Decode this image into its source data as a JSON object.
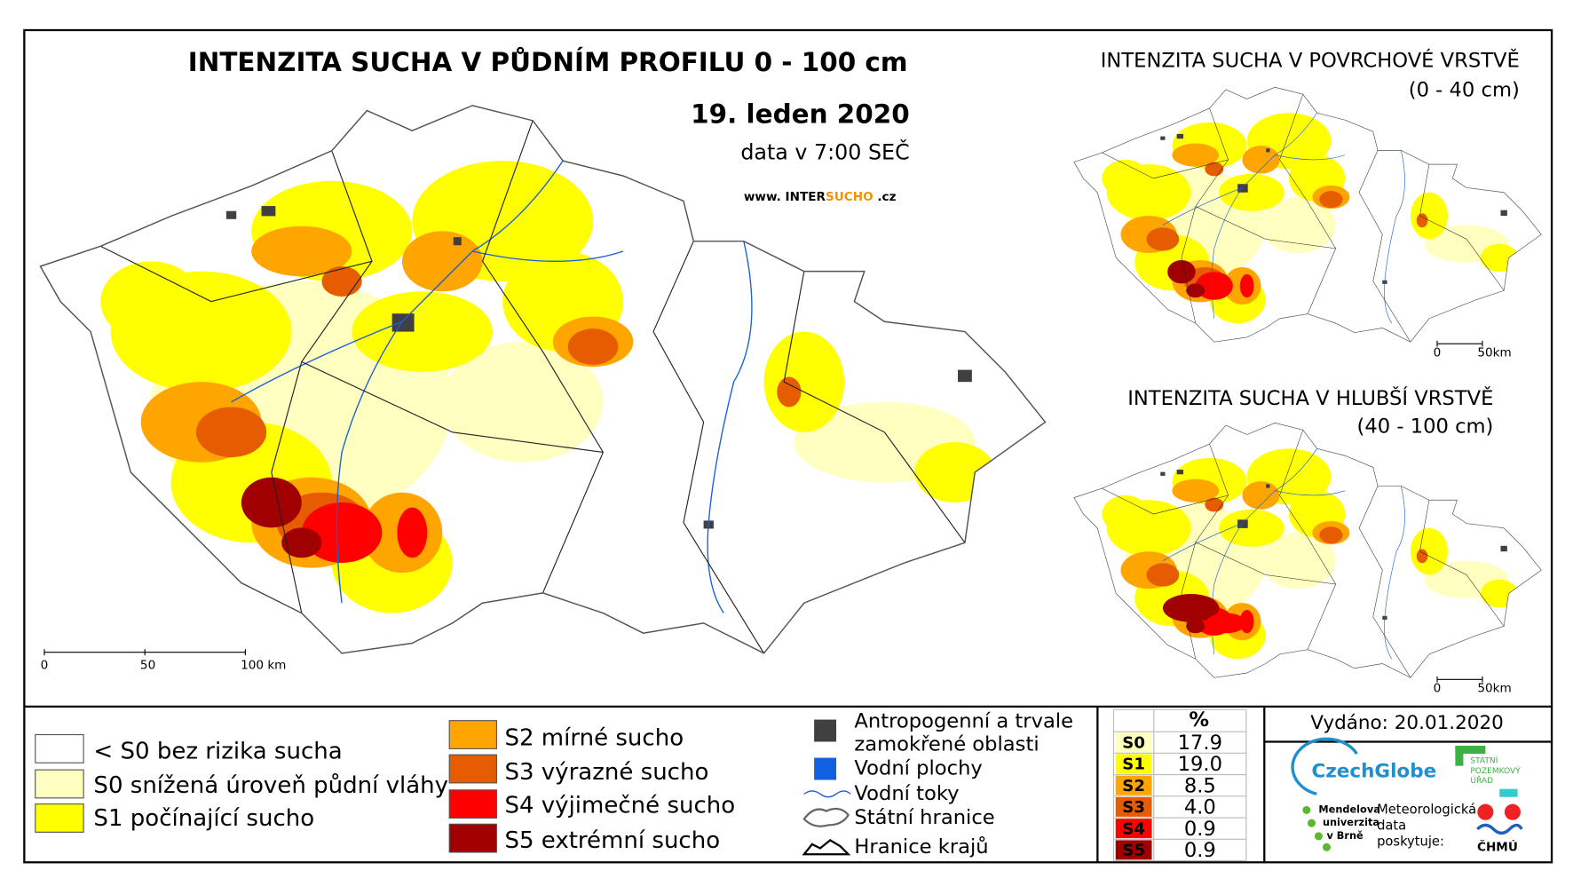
{
  "main": {
    "title": "INTENZITA SUCHA V PŮDNÍM PROFILU 0 - 100 cm",
    "date": "19. leden 2020",
    "data_time": "data v 7:00 SEČ",
    "website": {
      "prefix": "www.",
      "inter": "INTER",
      "sucho": "SUCHO",
      "suffix": ".cz"
    },
    "scale_labels": [
      "0",
      "50",
      "100 km"
    ]
  },
  "insets": [
    {
      "title": "INTENZITA SUCHA V POVRCHOVÉ VRSTVĚ",
      "subtitle": "(0 - 40 cm)",
      "scale_labels": [
        "0",
        "50km"
      ]
    },
    {
      "title": "INTENZITA SUCHA V HLUBŠÍ VRSTVĚ",
      "subtitle": "(40 - 100 cm)",
      "scale_labels": [
        "0",
        "50km"
      ]
    }
  ],
  "legend": {
    "classes": [
      {
        "label": "< S0 bez rizika sucha",
        "color": "#ffffff"
      },
      {
        "label": "S0 snížená úroveň půdní vláhy",
        "color": "#ffffc0"
      },
      {
        "label": "S1 počínající sucho",
        "color": "#ffff00"
      },
      {
        "label": "S2 mírné sucho",
        "color": "#ffa500"
      },
      {
        "label": "S3 výrazné sucho",
        "color": "#e65c00"
      },
      {
        "label": "S4 výjimečné sucho",
        "color": "#ff0000"
      },
      {
        "label": "S5 extrémní sucho",
        "color": "#a00000"
      }
    ],
    "symbols": [
      {
        "lines": [
          "Antropogenní a trvale",
          "zamokřené oblasti"
        ]
      },
      {
        "lines": [
          "Vodní plochy"
        ]
      },
      {
        "lines": [
          "Vodní toky"
        ]
      },
      {
        "lines": [
          "Státní hranice"
        ]
      },
      {
        "lines": [
          "Hranice krajů"
        ]
      }
    ]
  },
  "table": {
    "header": "%",
    "rows": [
      {
        "code": "S0",
        "value": "17.9",
        "color": "#ffffc0"
      },
      {
        "code": "S1",
        "value": "19.0",
        "color": "#ffff00"
      },
      {
        "code": "S2",
        "value": "8.5",
        "color": "#ffa500"
      },
      {
        "code": "S3",
        "value": "4.0",
        "color": "#e65c00"
      },
      {
        "code": "S4",
        "value": "0.9",
        "color": "#ff0000"
      },
      {
        "code": "S5",
        "value": "0.9",
        "color": "#a00000"
      }
    ]
  },
  "footer": {
    "issued": "Vydáno: 20.01.2020",
    "czechglobe": "CzechGlobe",
    "spu": [
      "STÁTNÍ",
      "POZEMKOVÝ",
      "ÚŘAD"
    ],
    "mendelu": [
      "Mendelova",
      "univerzita",
      "v Brně"
    ],
    "meteo": [
      "Meteorologická",
      "data",
      "poskytuje:"
    ],
    "chmu": "ČHMÚ"
  }
}
